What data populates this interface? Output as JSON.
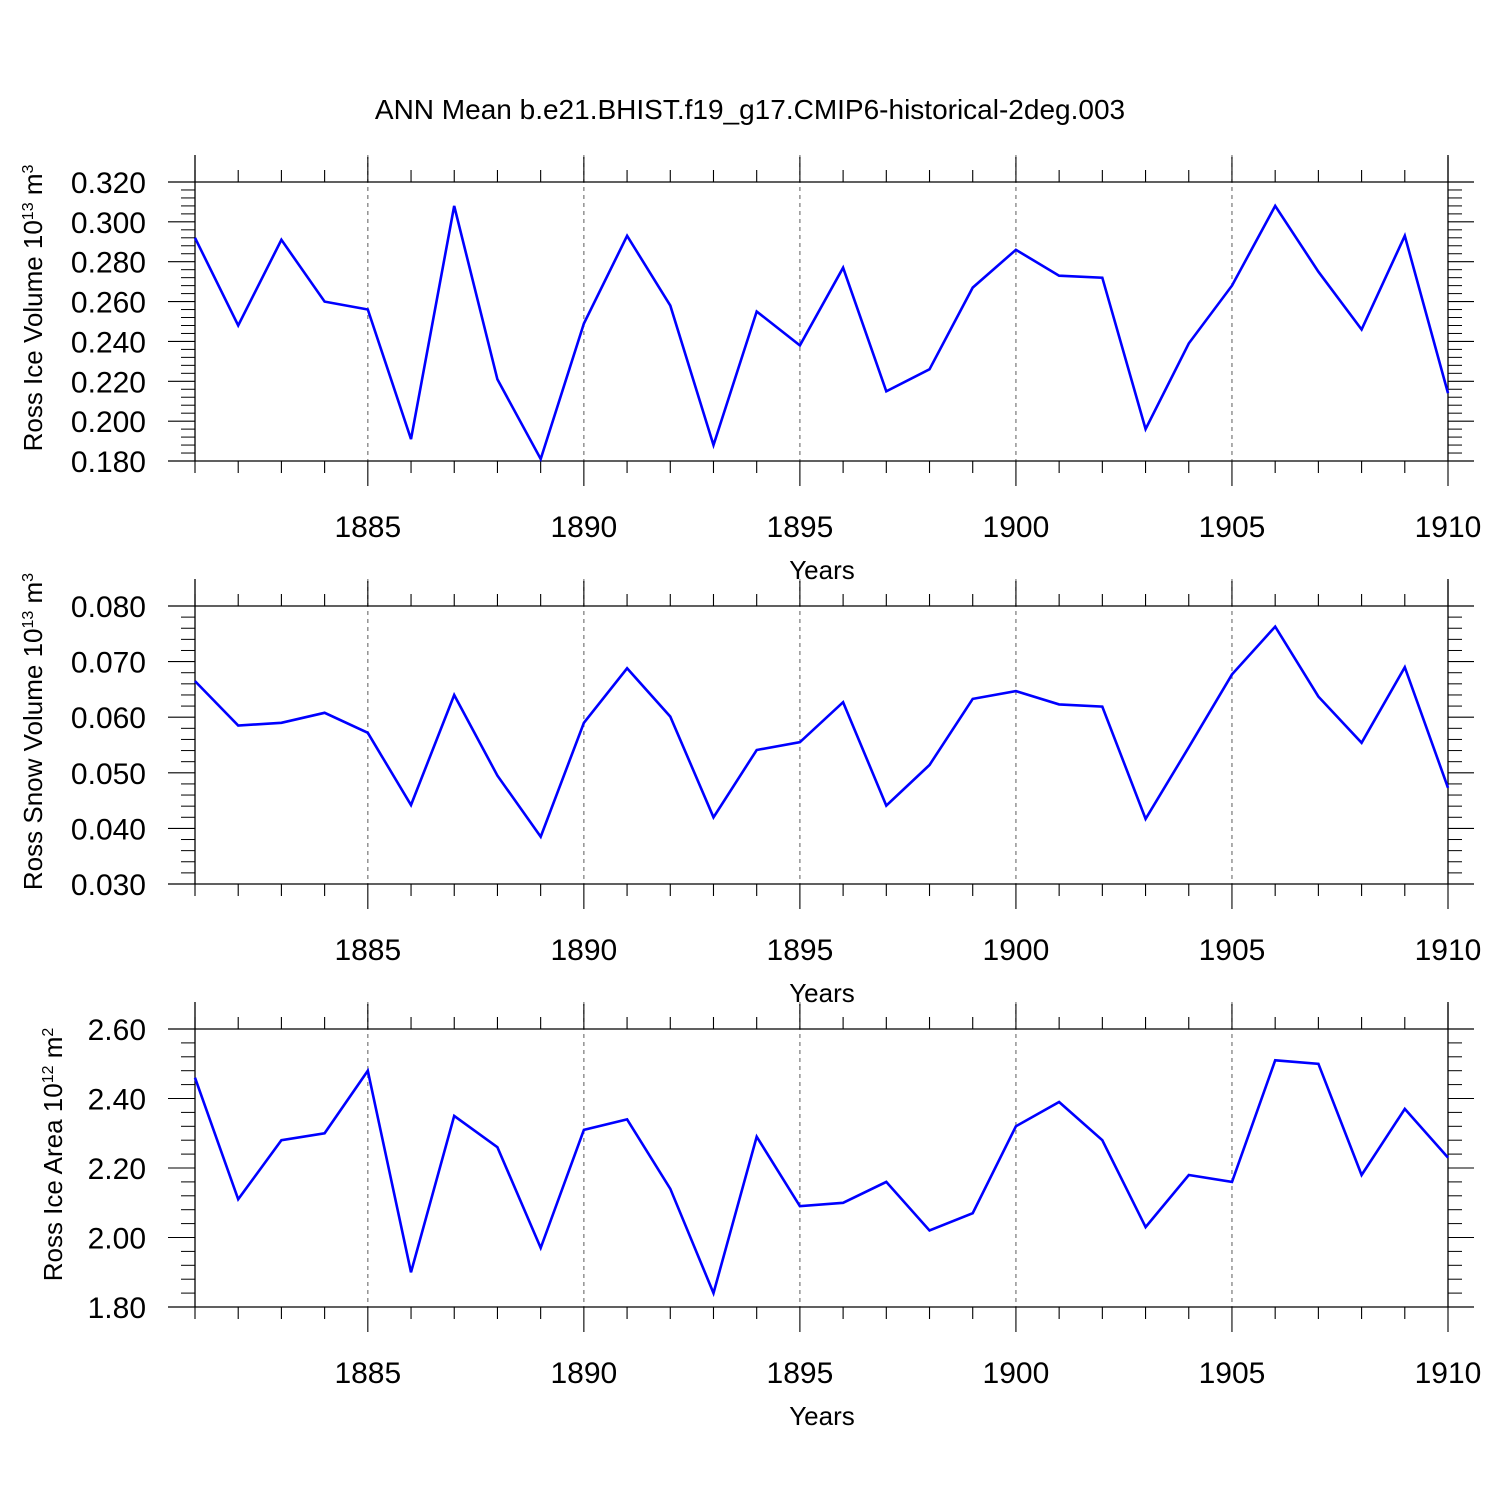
{
  "title": "ANN Mean b.e21.BHIST.f19_g17.CMIP6-historical-2deg.003",
  "chart_data": [
    {
      "type": "line",
      "ylabel": {
        "main": "Ross Ice Volume 10",
        "exponent": "13",
        "unit_main": " m",
        "unit_exponent": "3"
      },
      "xlabel": "Years",
      "xlim": [
        1881,
        1910
      ],
      "ylim": [
        0.18,
        0.32
      ],
      "yticks": [
        "0.180",
        "0.200",
        "0.220",
        "0.240",
        "0.260",
        "0.280",
        "0.300",
        "0.320"
      ],
      "yticks_values": [
        0.18,
        0.2,
        0.22,
        0.24,
        0.26,
        0.28,
        0.3,
        0.32
      ],
      "xticks": [
        "1885",
        "1890",
        "1895",
        "1900",
        "1905",
        "1910"
      ],
      "xticks_values": [
        1885,
        1890,
        1895,
        1900,
        1905,
        1910
      ],
      "grid_x": true,
      "line_color": "#0000ff",
      "x": [
        1881,
        1882,
        1883,
        1884,
        1885,
        1886,
        1887,
        1888,
        1889,
        1890,
        1891,
        1892,
        1893,
        1894,
        1895,
        1896,
        1897,
        1898,
        1899,
        1900,
        1901,
        1902,
        1903,
        1904,
        1905,
        1906,
        1907,
        1908,
        1909,
        1910
      ],
      "values": [
        0.292,
        0.248,
        0.291,
        0.26,
        0.256,
        0.191,
        0.308,
        0.221,
        0.181,
        0.249,
        0.293,
        0.258,
        0.188,
        0.255,
        0.238,
        0.277,
        0.215,
        0.226,
        0.267,
        0.286,
        0.273,
        0.272,
        0.196,
        0.239,
        0.268,
        0.308,
        0.275,
        0.246,
        0.293,
        0.214
      ]
    },
    {
      "type": "line",
      "ylabel": {
        "main": "Ross Snow Volume 10",
        "exponent": "13",
        "unit_main": " m",
        "unit_exponent": "3"
      },
      "xlabel": "Years",
      "xlim": [
        1881,
        1910
      ],
      "ylim": [
        0.03,
        0.08
      ],
      "yticks": [
        "0.030",
        "0.040",
        "0.050",
        "0.060",
        "0.070",
        "0.080"
      ],
      "yticks_values": [
        0.03,
        0.04,
        0.05,
        0.06,
        0.07,
        0.08
      ],
      "xticks": [
        "1885",
        "1890",
        "1895",
        "1900",
        "1905",
        "1910"
      ],
      "xticks_values": [
        1885,
        1890,
        1895,
        1900,
        1905,
        1910
      ],
      "grid_x": true,
      "line_color": "#0000ff",
      "x": [
        1881,
        1882,
        1883,
        1884,
        1885,
        1886,
        1887,
        1888,
        1889,
        1890,
        1891,
        1892,
        1893,
        1894,
        1895,
        1896,
        1897,
        1898,
        1899,
        1900,
        1901,
        1902,
        1903,
        1904,
        1905,
        1906,
        1907,
        1908,
        1909,
        1910
      ],
      "values": [
        0.0665,
        0.0585,
        0.059,
        0.0608,
        0.0572,
        0.0442,
        0.064,
        0.0495,
        0.0385,
        0.059,
        0.0688,
        0.0601,
        0.042,
        0.0541,
        0.0555,
        0.0627,
        0.0441,
        0.0514,
        0.0633,
        0.0647,
        0.0623,
        0.0619,
        0.0417,
        0.0546,
        0.0677,
        0.0763,
        0.0637,
        0.0554,
        0.069,
        0.0473
      ]
    },
    {
      "type": "line",
      "ylabel": {
        "main": "Ross Ice Area 10",
        "exponent": "12",
        "unit_main": " m",
        "unit_exponent": "2"
      },
      "xlabel": "Years",
      "xlim": [
        1881,
        1910
      ],
      "ylim": [
        1.8,
        2.6
      ],
      "yticks": [
        "1.80",
        "2.00",
        "2.20",
        "2.40",
        "2.60"
      ],
      "yticks_values": [
        1.8,
        2.0,
        2.2,
        2.4,
        2.6
      ],
      "xticks": [
        "1885",
        "1890",
        "1895",
        "1900",
        "1905",
        "1910"
      ],
      "xticks_values": [
        1885,
        1890,
        1895,
        1900,
        1905,
        1910
      ],
      "grid_x": true,
      "line_color": "#0000ff",
      "x": [
        1881,
        1882,
        1883,
        1884,
        1885,
        1886,
        1887,
        1888,
        1889,
        1890,
        1891,
        1892,
        1893,
        1894,
        1895,
        1896,
        1897,
        1898,
        1899,
        1900,
        1901,
        1902,
        1903,
        1904,
        1905,
        1906,
        1907,
        1908,
        1909,
        1910
      ],
      "values": [
        2.46,
        2.11,
        2.28,
        2.3,
        2.48,
        1.9,
        2.35,
        2.26,
        1.97,
        2.31,
        2.34,
        2.14,
        1.84,
        2.29,
        2.09,
        2.1,
        2.16,
        2.02,
        2.07,
        2.32,
        2.39,
        2.28,
        2.03,
        2.18,
        2.16,
        2.51,
        2.5,
        2.18,
        2.37,
        2.23
      ]
    }
  ]
}
